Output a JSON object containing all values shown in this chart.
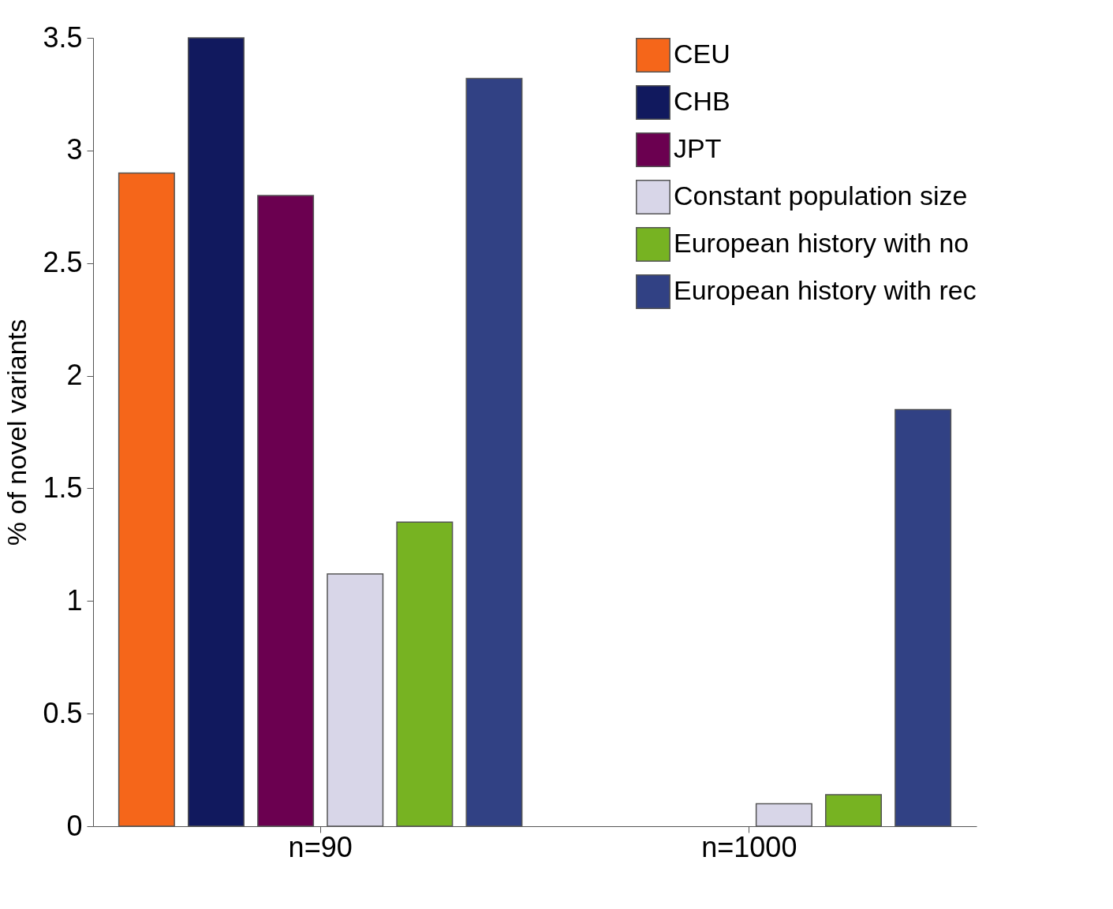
{
  "chart_data": {
    "type": "bar",
    "ylabel": "% of novel variants",
    "categories": [
      "n=90",
      "n=1000"
    ],
    "series": [
      {
        "name": "CEU",
        "color": "#f5661a",
        "values": [
          2.9,
          null
        ]
      },
      {
        "name": "CHB",
        "color": "#11195e",
        "values": [
          3.5,
          null
        ]
      },
      {
        "name": "JPT",
        "color": "#6b0050",
        "values": [
          2.8,
          null
        ]
      },
      {
        "name": "Constant population size",
        "color": "#d8d6e8",
        "values": [
          1.12,
          0.1
        ]
      },
      {
        "name": "European history with no",
        "color": "#77b322",
        "values": [
          1.35,
          0.14
        ]
      },
      {
        "name": "European history with rec",
        "color": "#314184",
        "values": [
          3.32,
          1.85
        ]
      }
    ],
    "ylim": [
      0,
      3.5
    ],
    "yticks": [
      0,
      0.5,
      1,
      1.5,
      2,
      2.5,
      3,
      3.5
    ],
    "grid": false,
    "legend": "top right"
  }
}
